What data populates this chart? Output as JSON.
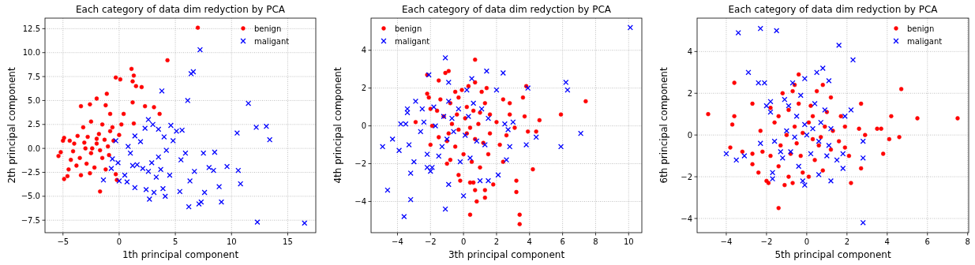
{
  "chart_data": [
    {
      "type": "scatter",
      "title": "Each category of data dim redyction by PCA",
      "xlabel": "1th principal component",
      "ylabel": "2th principal component",
      "xlim": [
        -6.6,
        17.5
      ],
      "ylim": [
        -8.8,
        13.6
      ],
      "xticks": [
        {
          "value": -5,
          "label": "−5"
        },
        0,
        5,
        10,
        15
      ],
      "yticks": [
        {
          "value": -7.5,
          "label": "−7.5"
        },
        {
          "value": -5,
          "label": "−5.0"
        },
        {
          "value": -2.5,
          "label": "−2.5"
        },
        {
          "value": 0,
          "label": "0.0"
        },
        2.5,
        {
          "value": 5,
          "label": "5.0"
        },
        7.5,
        {
          "value": 10,
          "label": "10.0"
        },
        12.5
      ],
      "grid": true,
      "legend": "top right",
      "series": [
        {
          "name": "benign",
          "color": "#ff0000",
          "marker": "circle",
          "x": [
            7,
            4.3,
            1.1,
            1.3,
            -0.3,
            0.1,
            1.2,
            1.5,
            2.0,
            -1.1,
            1.2,
            2.3,
            3.1,
            3.6,
            -3.4,
            -2,
            -2.6,
            -1.2,
            -0.8,
            0.4,
            0.2,
            1.3,
            -5,
            -4.9,
            -4.4,
            -5.2,
            -5.4,
            -4.9,
            -4.6,
            -1.7,
            -0.2,
            -0.3,
            -2.5,
            -3,
            -2,
            -3.5,
            -1.5,
            -2.8,
            -1.8,
            -3.8,
            -2.2,
            -1,
            -4,
            -3.2,
            -2.5,
            -1.5,
            -0.8,
            -1.2,
            -2.6,
            -3.4,
            -4.3,
            -4.5,
            -0.5,
            -0.9,
            -1.7,
            -3.7,
            -2.9,
            -2,
            -3.1,
            -1.3,
            -2.4,
            -4.1,
            0,
            -0.6
          ],
          "values": [
            12.6,
            9.2,
            8.3,
            7.6,
            7.4,
            7.2,
            7.0,
            6.5,
            6.4,
            5.7,
            4.8,
            4.4,
            4.3,
            3.6,
            4.4,
            5.2,
            4.6,
            4.5,
            3.6,
            3.6,
            2.5,
            2.6,
            0.8,
            1.1,
            0.8,
            -0.4,
            -0.8,
            -3.2,
            -2.9,
            -4.5,
            -3.3,
            -2.7,
            -0.5,
            0,
            0.5,
            -1,
            -1,
            1.2,
            1.5,
            -1.8,
            -2,
            0.2,
            0.5,
            2.2,
            2.8,
            2.5,
            1.8,
            -2.2,
            -2.6,
            -2.8,
            -1.2,
            -2.2,
            0.8,
            -0.7,
            -0.2,
            1.3,
            -1.6,
            1,
            0.6,
            0.9,
            0,
            -0.3,
            1.4,
            2.2
          ]
        },
        {
          "name": "maligant",
          "color": "#0000ff",
          "marker": "cross",
          "x": [
            7.2,
            6.4,
            6.6,
            3.8,
            6.1,
            11.5,
            12.2,
            13.1,
            13.4,
            10.5,
            4.6,
            5.9,
            7.5,
            8.5,
            10.6,
            10.8,
            5.4,
            6.2,
            7.1,
            7.3,
            9.1,
            12.3,
            16.5,
            6.3,
            8.9,
            7.6,
            8.4,
            9.6,
            3.1,
            2.4,
            3.9,
            2.7,
            4.1,
            1.4,
            0.7,
            0,
            -1.4,
            -0.7,
            -0.6,
            -0.3,
            1.4,
            2.3,
            2.6,
            3.0,
            3.5,
            4,
            5.1,
            5.6,
            5.5,
            4.5,
            3.3,
            2.1,
            1.6,
            1,
            1.9,
            2.9,
            3.5,
            4.2,
            4.8,
            3.7,
            2.6,
            0.5,
            -0.1,
            6.7,
            8,
            0.8,
            1.2
          ],
          "values": [
            10.3,
            7.8,
            8,
            6,
            5,
            4.7,
            2.2,
            2.3,
            0.9,
            1.6,
            2.4,
            -0.5,
            -0.5,
            -0.4,
            -2.3,
            -3.7,
            -4.5,
            -6.1,
            -5.8,
            -5.6,
            -5.6,
            -7.7,
            -7.8,
            -3.4,
            -4,
            -4.6,
            -2.3,
            -1.9,
            -4.6,
            -4.3,
            -4.2,
            -5.3,
            -5,
            -4.1,
            -3.5,
            -3.4,
            -3.3,
            -2.1,
            -1.1,
            0.8,
            1.3,
            2.1,
            3.0,
            2.5,
            2,
            1.2,
            1.8,
            1.9,
            -1.2,
            -2.8,
            -3,
            -2.1,
            -1.7,
            -0.5,
            0.7,
            -1.5,
            -0.9,
            -0.2,
            0.8,
            -2.2,
            -2.4,
            -2.8,
            -1.5,
            -2.4,
            -2,
            0.2,
            -1.8
          ]
        }
      ]
    },
    {
      "type": "scatter",
      "title": "Each category of data dim redyction by PCA",
      "xlabel": "3th principal component",
      "ylabel": "4th principal component",
      "xlim": [
        -5.6,
        10.8
      ],
      "ylim": [
        -5.65,
        5.7
      ],
      "xticks": [
        {
          "value": -4,
          "label": "−4"
        },
        {
          "value": -2,
          "label": "−2"
        },
        0,
        2,
        4,
        6,
        8,
        10
      ],
      "yticks": [
        {
          "value": -4,
          "label": "−4"
        },
        {
          "value": -2,
          "label": "−2"
        },
        0,
        2,
        4
      ],
      "grid": true,
      "legend": "top left",
      "series": [
        {
          "name": "benign",
          "color": "#ff0000",
          "marker": "circle",
          "x": [
            0.7,
            -0.9,
            -1.1,
            -2.2,
            -2.2,
            -2.1,
            -2,
            -2,
            -2.9,
            -1,
            -0.8,
            -0.3,
            -0.2,
            0.4,
            0.6,
            0.7,
            0.8,
            0.4,
            1.3,
            1.3,
            1.8,
            3.2,
            3.2,
            3.4,
            3.4,
            2.4,
            4.2,
            3.7,
            3.9,
            4.4,
            4.6,
            5.9,
            7.4,
            3.6,
            3.8,
            2.8,
            2.4,
            2.8,
            3.1,
            1.4,
            1.1,
            0.3,
            0.7,
            -0.1,
            -0.5,
            -1.5,
            -1.4,
            -0.8,
            -0.3,
            0.2,
            0.6,
            1,
            1.6,
            2,
            1.6,
            1.2,
            0.7,
            0.2,
            -0.3,
            -0.7,
            -1.2,
            -1.6,
            -1.9,
            -1.5,
            -1,
            -0.5,
            0,
            0.5,
            1,
            1.5,
            2.2,
            2.6,
            0.1,
            -0.4,
            0.4,
            0.9,
            -0.9,
            1.3
          ],
          "values": [
            3.5,
            2.9,
            2.8,
            2.7,
            1.7,
            1.5,
            0.9,
            -1,
            0.2,
            -2,
            -1.8,
            -2.6,
            -2.9,
            -3,
            -3,
            -3.4,
            -4,
            -4.7,
            -3.8,
            -3.4,
            -3.1,
            -2.9,
            -3.5,
            -4.7,
            -5.2,
            -1.9,
            -2.3,
            0.5,
            -0.3,
            -0.3,
            0.3,
            0.6,
            1.3,
            1.5,
            2.1,
            1.2,
            1.4,
            0.6,
            -0.1,
            2,
            1.8,
            2.1,
            2.3,
            1.9,
            1.8,
            2.4,
            1.4,
            1.2,
            1.5,
            1,
            0.8,
            0.7,
            0.6,
            0.2,
            -0.4,
            -0.9,
            -0.7,
            -0.4,
            -0.2,
            0.1,
            0.5,
            0.8,
            0,
            -0.6,
            -0.8,
            -1.1,
            -1.5,
            -1.9,
            -2.2,
            -1.5,
            -1,
            -0.5,
            0.4,
            0.6,
            -0.1,
            0.1,
            -0.4,
            1.2
          ]
        },
        {
          "name": "maligant",
          "color": "#0000ff",
          "marker": "cross",
          "x": [
            10.1,
            6.2,
            6.3,
            3.9,
            5.9,
            7.1,
            4.4,
            3.8,
            2.4,
            1.4,
            -1.1,
            -2.1,
            -0.9,
            -2.9,
            -3.4,
            -3.4,
            -3.8,
            -3.5,
            -4.3,
            -4.9,
            -3.9,
            -3.3,
            -3,
            -3.2,
            -4.6,
            -3.2,
            -3.6,
            -1.1,
            -0.9,
            0,
            1,
            1.5,
            2.1,
            -1.9,
            -2,
            -2.2,
            -2.2,
            -2.6,
            -2.4,
            -1.8,
            -1.7,
            -1.3,
            -1,
            -0.6,
            -0.3,
            0.3,
            0.5,
            0.2,
            0.6,
            -0.9,
            -1.2,
            -0.2,
            0.4,
            0.8,
            1.1,
            1.5,
            2,
            2.5,
            2.7,
            2.8,
            2.6,
            3,
            -2.5,
            1.3,
            0.1,
            -0.7,
            -1.5
          ],
          "values": [
            5.2,
            2.3,
            1.9,
            2,
            -1.1,
            -0.4,
            -0.6,
            -1,
            2.8,
            2.9,
            3.6,
            2.7,
            2.3,
            1.3,
            0.9,
            0.7,
            0.1,
            0.1,
            -0.7,
            -1.1,
            -1.3,
            -1,
            -1.9,
            -2.5,
            -3.4,
            -3.9,
            -4.8,
            -4.4,
            -3.1,
            -3.7,
            -2.9,
            -2.9,
            -2.6,
            -2.2,
            -2.4,
            -2.2,
            -1.5,
            -0.3,
            0.2,
            1,
            0,
            -1.1,
            -0.7,
            -0.3,
            0.9,
            0.5,
            2.5,
            1.9,
            1.2,
            1.3,
            0.5,
            -1.9,
            -1.7,
            -0.8,
            0.9,
            0.4,
            1.9,
            0.1,
            -0.2,
            -1.1,
            -1.8,
            0.2,
            0.9,
            -1,
            -0.5,
            0.4,
            -1.6
          ]
        }
      ]
    },
    {
      "type": "scatter",
      "title": "Each category of data dim redyction by PCA",
      "xlabel": "5th principal component",
      "ylabel": "6th principal component",
      "xlim": [
        -5.45,
        8.05
      ],
      "ylim": [
        -4.68,
        5.6
      ],
      "xticks": [
        {
          "value": -4,
          "label": "−4"
        },
        {
          "value": -2,
          "label": "−2"
        },
        0,
        2,
        4,
        6,
        8
      ],
      "yticks": [
        {
          "value": -4,
          "label": "−4"
        },
        {
          "value": -2,
          "label": "−2"
        },
        0,
        2,
        4
      ],
      "grid": true,
      "legend": "top right",
      "series": [
        {
          "name": "benign",
          "color": "#ff0000",
          "marker": "circle",
          "x": [
            -4.9,
            -3.6,
            -3.6,
            -3.7,
            -3.8,
            -3.2,
            -2.7,
            -2.7,
            -2.7,
            -2.4,
            -2.3,
            -2.2,
            -2,
            -1.9,
            -1.8,
            -1.4,
            -1.4,
            -1.4,
            -1.2,
            -1.1,
            -0.9,
            -0.7,
            -0.7,
            -0.6,
            -0.4,
            -0.4,
            -0.2,
            0.1,
            0.3,
            0.5,
            0.8,
            0.8,
            1.2,
            1.7,
            1.9,
            2.1,
            2.2,
            2.6,
            2.7,
            2.7,
            2.9,
            3.5,
            3.7,
            3.8,
            4.2,
            4.6,
            4.7,
            5.5,
            7.5,
            4.1,
            1.6,
            1.2,
            0.6,
            0.3,
            -0.2,
            -0.6,
            -1,
            -1.3,
            -0.8,
            -0.3,
            0.4,
            0.9,
            1.3,
            0.1,
            -0.5,
            0.7,
            -1.6,
            1.9,
            -1.8,
            0.2,
            1,
            -0.9
          ],
          "values": [
            1,
            2.5,
            0.9,
            0.5,
            -0.6,
            -0.8,
            -0.9,
            -1.4,
            1.5,
            -1.8,
            0.2,
            -0.8,
            -2.2,
            -2.3,
            1.3,
            0.9,
            -1.5,
            -3.5,
            2,
            -2.4,
            -2.0,
            2.1,
            -2.3,
            2.4,
            2.9,
            1.5,
            -1.8,
            -2,
            0.9,
            2.1,
            2.4,
            -1.7,
            1.8,
            0.9,
            0.4,
            -1,
            -2.3,
            0.3,
            1.5,
            -1.6,
            0,
            0.3,
            0.3,
            -0.9,
            0.9,
            -0.1,
            2.2,
            0.8,
            0.8,
            -0.2,
            -0.3,
            -0.7,
            -0.5,
            -0.2,
            0.1,
            0.4,
            0,
            -0.5,
            -0.9,
            -1,
            -1.2,
            0.4,
            0.2,
            0.6,
            -0.4,
            -0.1,
            0.6,
            -0.6,
            -1.0,
            1.4,
            1.1,
            1.2
          ]
        },
        {
          "name": "maligant",
          "color": "#0000ff",
          "marker": "cross",
          "x": [
            -2.3,
            -1.5,
            -3.4,
            -2.9,
            -2.4,
            -2.1,
            -0.7,
            0.8,
            0.5,
            -0.1,
            1.6,
            2.3,
            1.1,
            -4,
            -3.5,
            -3.1,
            -1.7,
            -1.7,
            -1.2,
            -0.8,
            -0.4,
            -0.2,
            -0.1,
            0.6,
            1.2,
            2.8,
            2.8,
            2.8,
            1.8,
            1.8,
            1.5,
            1.1,
            0.6,
            0.3,
            -0.1,
            -0.5,
            -0.9,
            -1.1,
            -1.8,
            -1.8,
            -2,
            -1,
            -1.6,
            0.2,
            0.7,
            1.2,
            0.4,
            -0.3,
            1,
            0.9,
            -1.3,
            0,
            2.2,
            1.9,
            -2.3,
            -0.6
          ],
          "values": [
            5.1,
            5,
            4.9,
            3,
            2.5,
            2.5,
            2.5,
            3.2,
            3,
            2.7,
            4.3,
            3.6,
            2.6,
            -0.9,
            -1.2,
            -1,
            -1.8,
            -2.1,
            -1.1,
            -0.8,
            -1.5,
            -2.2,
            -2.4,
            -1.9,
            -2.2,
            -4.2,
            -1.1,
            -0.3,
            -0.9,
            -1.6,
            -1.2,
            -0.5,
            -0.3,
            0.3,
            0.5,
            0.9,
            1.4,
            1.7,
            1.6,
            1.1,
            1.4,
            0.2,
            -0.3,
            -0.9,
            0.6,
            0.3,
            1.5,
            1.9,
            -1,
            1.2,
            -0.8,
            0,
            1.2,
            0.9,
            -0.4,
            -0.1
          ]
        }
      ]
    }
  ]
}
